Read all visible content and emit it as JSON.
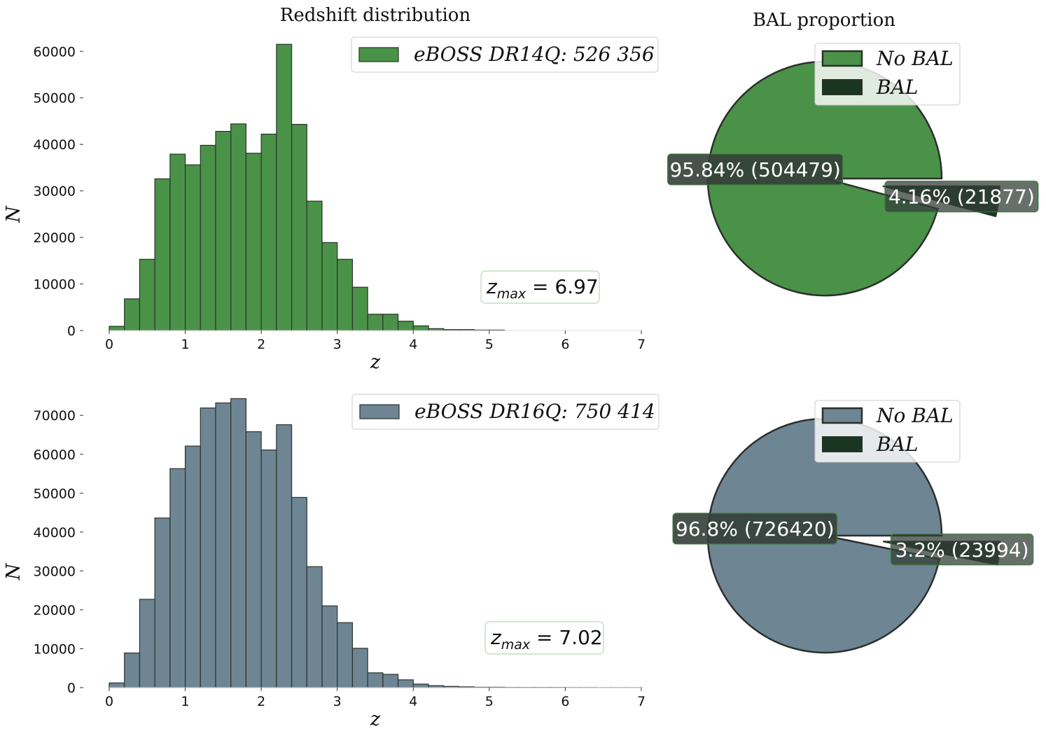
{
  "titles": {
    "hist": "Redshift distribution",
    "pie": "BAL proportion"
  },
  "colors": {
    "green": "#4a9248",
    "slate": "#6e8594",
    "bal": "#1b3620",
    "edge": "#2b332c",
    "label_bg": "#343f38"
  },
  "chart_data": [
    {
      "type": "bar",
      "title": "Redshift distribution",
      "xlabel": "z",
      "ylabel": "N",
      "xlim": [
        0,
        7
      ],
      "ylim": [
        0,
        62000
      ],
      "xticks": [
        "0",
        "1",
        "2",
        "3",
        "4",
        "5",
        "6",
        "7"
      ],
      "yticks": [
        "0",
        "10000",
        "20000",
        "30000",
        "40000",
        "50000",
        "60000"
      ],
      "bin_width": 0.2,
      "bin_start": 0,
      "series": [
        {
          "name": "eBOSS DR14Q: 526 356",
          "values": [
            900,
            6800,
            15300,
            32600,
            37900,
            35600,
            39800,
            42800,
            44400,
            38100,
            42200,
            61500,
            44300,
            27800,
            18900,
            15300,
            9300,
            3500,
            3500,
            2000,
            1000,
            400,
            200,
            200,
            100,
            100,
            0,
            0,
            0,
            0,
            0,
            0,
            0,
            0,
            0
          ]
        }
      ],
      "annotation": "6.97",
      "legend": "top-right"
    },
    {
      "type": "pie",
      "title": "BAL proportion",
      "slices": [
        {
          "label": "No BAL",
          "percent": 95.84,
          "count": 504479,
          "text": "95.84% (504479)"
        },
        {
          "label": "BAL",
          "percent": 4.16,
          "count": 21877,
          "text": "4.16% (21877)"
        }
      ],
      "legend": "top-right"
    },
    {
      "type": "bar",
      "xlabel": "z",
      "ylabel": "N",
      "xlim": [
        0,
        7
      ],
      "ylim": [
        0,
        74000
      ],
      "xticks": [
        "0",
        "1",
        "2",
        "3",
        "4",
        "5",
        "6",
        "7"
      ],
      "yticks": [
        "0",
        "10000",
        "20000",
        "30000",
        "40000",
        "50000",
        "60000",
        "70000"
      ],
      "bin_width": 0.2,
      "bin_start": 0,
      "series": [
        {
          "name": "eBOSS DR16Q: 750 414",
          "values": [
            1200,
            8900,
            22700,
            43600,
            56300,
            62100,
            71900,
            73200,
            74300,
            65800,
            61100,
            67600,
            48900,
            31100,
            21000,
            16700,
            10100,
            3800,
            3400,
            2000,
            900,
            500,
            300,
            200,
            100,
            100,
            50,
            50,
            50,
            50,
            30,
            30,
            20,
            20,
            20
          ]
        }
      ],
      "annotation": "7.02",
      "legend": "top-right"
    },
    {
      "type": "pie",
      "slices": [
        {
          "label": "No BAL",
          "percent": 96.8,
          "count": 726420,
          "text": "96.8% (726420)"
        },
        {
          "label": "BAL",
          "percent": 3.2,
          "count": 23994,
          "text": "3.2% (23994)"
        }
      ],
      "legend": "top-right"
    }
  ]
}
